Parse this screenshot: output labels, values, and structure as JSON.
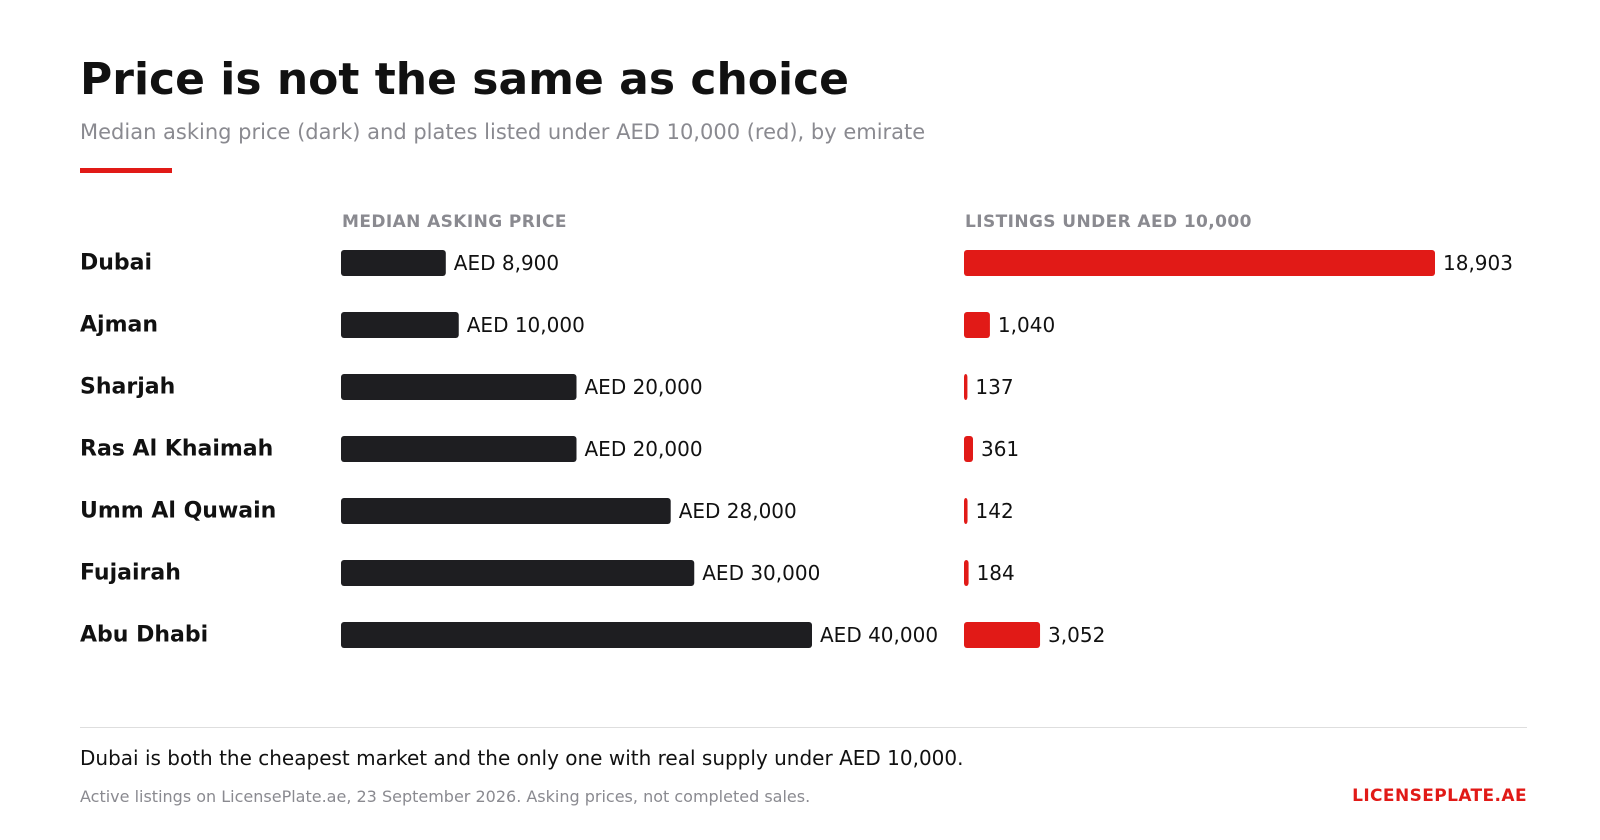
{
  "header": {
    "title": "Price is not the same as choice",
    "subtitle": "Median asking price (dark) and plates listed under AED 10,000 (red), by emirate"
  },
  "colors": {
    "price_bar": "#1e1e21",
    "listings_bar": "#e11a17",
    "accent": "#e11a17",
    "muted_text": "#8a8a90"
  },
  "chart_data": [
    {
      "type": "bar",
      "orientation": "horizontal",
      "title": "MEDIAN ASKING PRICE",
      "categories": [
        "Dubai",
        "Ajman",
        "Sharjah",
        "Ras Al Khaimah",
        "Umm Al Quwain",
        "Fujairah",
        "Abu Dhabi"
      ],
      "values": [
        8900,
        10000,
        20000,
        20000,
        28000,
        30000,
        40000
      ],
      "labels": [
        "AED 8,900",
        "AED 10,000",
        "AED 20,000",
        "AED 20,000",
        "AED 28,000",
        "AED 30,000",
        "AED 40,000"
      ],
      "xlim": [
        0,
        40000
      ],
      "grid": false,
      "color": "#1e1e21"
    },
    {
      "type": "bar",
      "orientation": "horizontal",
      "title": "LISTINGS UNDER AED 10,000",
      "categories": [
        "Dubai",
        "Ajman",
        "Sharjah",
        "Ras Al Khaimah",
        "Umm Al Quwain",
        "Fujairah",
        "Abu Dhabi"
      ],
      "values": [
        18903,
        1040,
        137,
        361,
        142,
        184,
        3052
      ],
      "labels": [
        "18,903",
        "1,040",
        "137",
        "361",
        "142",
        "184",
        "3,052"
      ],
      "xlim": [
        0,
        18903
      ],
      "grid": false,
      "color": "#e11a17"
    }
  ],
  "footer": {
    "takeaway": "Dubai is both the cheapest market and the only one with real supply under AED 10,000.",
    "source": "Active listings on LicensePlate.ae, 23 September 2026. Asking prices, not completed sales.",
    "brand": "LICENSEPLATE.AE"
  }
}
